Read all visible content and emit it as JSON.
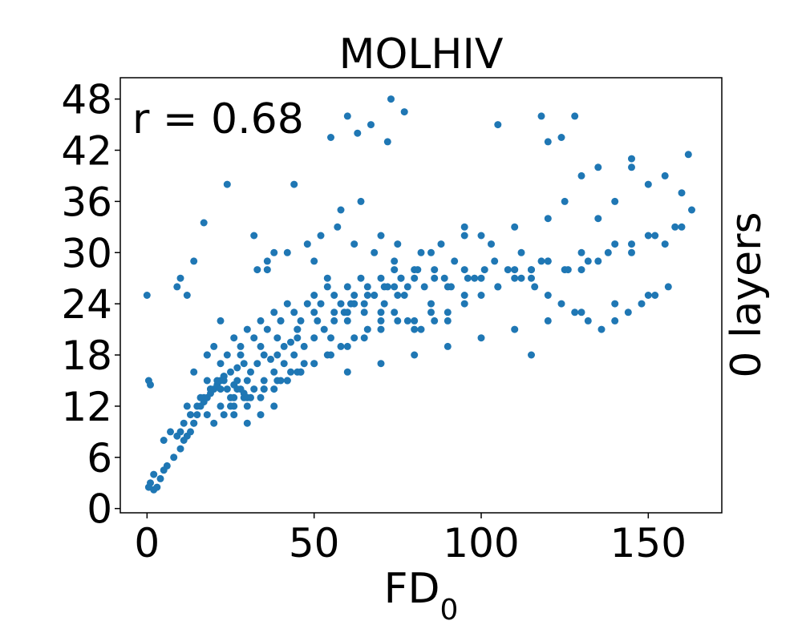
{
  "chart_data": {
    "type": "scatter",
    "title": "MOLHIV",
    "xlabel": "FD",
    "xlabel_subscript": "0",
    "ylabel_right": "0 layers",
    "annotation": "r =  0.68",
    "xlim": [
      -8,
      172
    ],
    "ylim": [
      -0.5,
      50.5
    ],
    "xticks": [
      0,
      50,
      100,
      150
    ],
    "yticks": [
      0,
      6,
      12,
      18,
      24,
      30,
      36,
      42,
      48
    ],
    "point_color": "#1f77b4",
    "grid": false,
    "series": [
      {
        "x": [
          0.5,
          1,
          2,
          3,
          2,
          4,
          5,
          6,
          8,
          10,
          11,
          12,
          13,
          14,
          15,
          16,
          17,
          18,
          19,
          20,
          21,
          22,
          23,
          24,
          25,
          26,
          27,
          28,
          29,
          30,
          5,
          7,
          9,
          11,
          13,
          15,
          17,
          19,
          21,
          23,
          25,
          27,
          29,
          31,
          33,
          35,
          37,
          39,
          41,
          43,
          45,
          18,
          20,
          22,
          24,
          26,
          28,
          30,
          32,
          34,
          36,
          38,
          40,
          42,
          44,
          46,
          48,
          50,
          52,
          54,
          56,
          58,
          60,
          62,
          64,
          66,
          68,
          70,
          72,
          74,
          76,
          78,
          80,
          20,
          23,
          26,
          29,
          32,
          35,
          38,
          41,
          44,
          47,
          50,
          53,
          56,
          59,
          62,
          65,
          68,
          71,
          74,
          77,
          80,
          83,
          86,
          89,
          92,
          95,
          98,
          25,
          30,
          35,
          40,
          45,
          50,
          55,
          60,
          65,
          70,
          75,
          80,
          85,
          90,
          95,
          100,
          105,
          110,
          115,
          120,
          40,
          45,
          50,
          55,
          60,
          65,
          70,
          75,
          80,
          85,
          90,
          95,
          100,
          105,
          110,
          115,
          120,
          125,
          130,
          135,
          140,
          145,
          150,
          155,
          160,
          163,
          60,
          70,
          80,
          90,
          100,
          110,
          120,
          130,
          140,
          150,
          0,
          0.5,
          1,
          9,
          10,
          12,
          14,
          17,
          18,
          22,
          24,
          32,
          36,
          38,
          44,
          50,
          54,
          58,
          60,
          64,
          70,
          55,
          60,
          63,
          67,
          73,
          77,
          72,
          105,
          115,
          118,
          120,
          124,
          128,
          130,
          135,
          145,
          150,
          155,
          160,
          162,
          75,
          85,
          95,
          100,
          110,
          115,
          120,
          125,
          130,
          135,
          140,
          145,
          33,
          36,
          42,
          48,
          52,
          57,
          62,
          68,
          74,
          82,
          88,
          95,
          103,
          112,
          118,
          126,
          132,
          138,
          145,
          152,
          158,
          28,
          34,
          39,
          45,
          51,
          56,
          61,
          66,
          71,
          76,
          81,
          86,
          91,
          96,
          101,
          12,
          16,
          19,
          23,
          27,
          31,
          35,
          39,
          43,
          47,
          14,
          18,
          22,
          26,
          30,
          34,
          38,
          42,
          46,
          10,
          14,
          18,
          22,
          26,
          30,
          34,
          38,
          42,
          46,
          50,
          54,
          58,
          62,
          66,
          70,
          74,
          78,
          82,
          86,
          90,
          104,
          108,
          112,
          116,
          120,
          124,
          128,
          132,
          136,
          140,
          144,
          148,
          152,
          156
        ],
        "y": [
          2.5,
          3,
          2.2,
          2.5,
          4,
          3.5,
          4.5,
          5,
          6,
          7,
          8,
          8.5,
          9,
          10,
          11,
          12,
          12.5,
          13,
          13.5,
          14,
          14.5,
          15,
          15.5,
          14,
          13,
          14.5,
          15,
          14,
          13.5,
          15,
          8,
          9,
          8.5,
          10,
          11,
          12,
          13,
          14,
          15,
          15.5,
          16,
          16.5,
          17,
          16,
          17,
          18,
          17.5,
          18,
          19,
          19.5,
          20,
          18,
          19,
          17,
          18,
          20,
          19,
          21,
          20,
          22,
          21,
          23,
          22,
          24,
          23,
          22,
          24,
          25,
          24,
          26,
          25,
          24,
          26,
          25,
          27,
          26,
          25,
          27,
          26,
          28,
          27,
          26,
          28,
          10,
          11,
          12,
          13,
          14,
          15,
          16,
          17,
          18,
          19,
          20,
          21,
          22,
          23,
          24,
          23,
          25,
          24,
          26,
          25,
          27,
          26,
          28,
          27,
          29,
          28,
          27,
          12,
          13,
          14,
          15,
          16,
          17,
          18,
          19,
          20,
          21,
          22,
          21,
          23,
          22,
          24,
          25,
          26,
          27,
          28,
          29,
          22,
          21,
          23,
          20,
          22,
          24,
          23,
          25,
          22,
          24,
          26,
          25,
          27,
          26,
          28,
          27,
          29,
          28,
          30,
          29,
          31,
          30,
          32,
          31,
          33,
          35,
          16,
          17,
          18,
          19,
          20,
          21,
          22,
          23,
          24,
          25,
          25,
          15,
          14.5,
          26,
          27,
          25,
          29,
          33.5,
          18,
          22,
          38,
          32,
          28,
          30,
          38,
          29,
          27,
          35,
          23,
          36,
          32,
          43.5,
          46,
          44,
          45,
          48,
          46.5,
          43,
          45,
          18,
          46,
          43,
          43.5,
          46,
          39,
          40,
          41,
          38,
          39,
          37,
          41.5,
          31,
          30,
          33,
          32,
          33,
          28,
          34,
          36,
          28,
          34,
          36,
          40,
          28,
          29,
          30,
          31,
          32,
          33,
          31,
          30,
          29,
          30,
          31,
          32,
          31,
          30,
          29,
          28,
          29,
          30,
          31,
          32,
          33,
          18,
          19,
          20,
          21,
          22,
          23,
          24,
          25,
          26,
          27,
          28,
          27,
          26,
          27,
          28,
          12,
          13,
          14,
          15,
          14,
          13,
          14,
          15,
          16,
          17,
          16,
          15,
          14,
          13,
          12,
          13,
          14,
          15,
          16,
          9,
          10,
          11,
          12,
          11,
          10,
          11,
          12,
          15,
          16,
          17,
          18,
          19,
          20,
          21,
          22,
          23,
          22,
          21,
          22,
          23,
          29,
          28,
          27,
          26,
          25,
          24,
          23,
          22,
          21,
          22,
          23,
          24,
          25,
          26
        ]
      }
    ]
  }
}
